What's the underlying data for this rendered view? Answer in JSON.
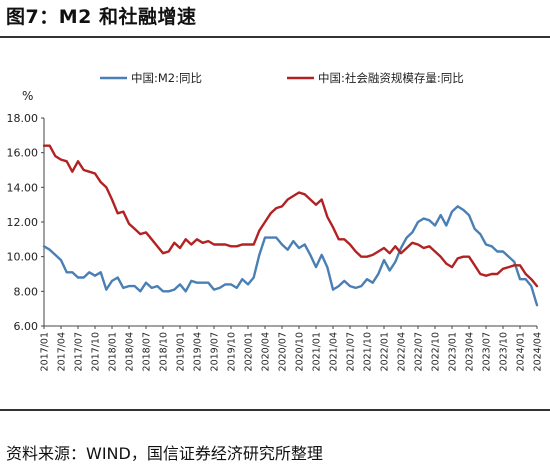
{
  "title": "图7：M2 和社融增速",
  "source": "资料来源：WIND，国信证券经济研究所整理",
  "chart_data": {
    "type": "line",
    "ylabel": "%",
    "ylim": [
      6,
      18
    ],
    "yticks": [
      "6.00",
      "8.00",
      "10.00",
      "12.00",
      "14.00",
      "16.00",
      "18.00"
    ],
    "x": [
      "2017/01",
      "2017/02",
      "2017/03",
      "2017/04",
      "2017/05",
      "2017/06",
      "2017/07",
      "2017/08",
      "2017/09",
      "2017/10",
      "2017/11",
      "2017/12",
      "2018/01",
      "2018/02",
      "2018/03",
      "2018/04",
      "2018/05",
      "2018/06",
      "2018/07",
      "2018/08",
      "2018/09",
      "2018/10",
      "2018/11",
      "2018/12",
      "2019/01",
      "2019/02",
      "2019/03",
      "2019/04",
      "2019/05",
      "2019/06",
      "2019/07",
      "2019/08",
      "2019/09",
      "2019/10",
      "2019/11",
      "2019/12",
      "2020/01",
      "2020/02",
      "2020/03",
      "2020/04",
      "2020/05",
      "2020/06",
      "2020/07",
      "2020/08",
      "2020/09",
      "2020/10",
      "2020/11",
      "2020/12",
      "2021/01",
      "2021/02",
      "2021/03",
      "2021/04",
      "2021/05",
      "2021/06",
      "2021/07",
      "2021/08",
      "2021/09",
      "2021/10",
      "2021/11",
      "2021/12",
      "2022/01",
      "2022/02",
      "2022/03",
      "2022/04",
      "2022/05",
      "2022/06",
      "2022/07",
      "2022/08",
      "2022/09",
      "2022/10",
      "2022/11",
      "2022/12",
      "2023/01",
      "2023/02",
      "2023/03",
      "2023/04",
      "2023/05",
      "2023/06",
      "2023/07",
      "2023/08",
      "2023/09",
      "2023/10",
      "2023/11",
      "2023/12",
      "2024/01",
      "2024/02",
      "2024/03",
      "2024/04"
    ],
    "xtick_labels": [
      "2017/01",
      "2017/04",
      "2017/07",
      "2017/10",
      "2018/01",
      "2018/04",
      "2018/07",
      "2018/10",
      "2019/01",
      "2019/04",
      "2019/07",
      "2019/10",
      "2020/01",
      "2020/04",
      "2020/07",
      "2020/10",
      "2021/01",
      "2021/04",
      "2021/07",
      "2021/10",
      "2022/01",
      "2022/04",
      "2022/07",
      "2022/10",
      "2023/01",
      "2023/04",
      "2023/07",
      "2023/10",
      "2024/01",
      "2024/04"
    ],
    "series": [
      {
        "name": "中国:M2:同比",
        "color": "#4a7fb5",
        "values": [
          10.6,
          10.4,
          10.1,
          9.8,
          9.1,
          9.1,
          8.8,
          8.8,
          9.1,
          8.9,
          9.1,
          8.1,
          8.6,
          8.8,
          8.2,
          8.3,
          8.3,
          8.0,
          8.5,
          8.2,
          8.3,
          8.0,
          8.0,
          8.1,
          8.4,
          8.0,
          8.6,
          8.5,
          8.5,
          8.5,
          8.1,
          8.2,
          8.4,
          8.4,
          8.2,
          8.7,
          8.4,
          8.8,
          10.1,
          11.1,
          11.1,
          11.1,
          10.7,
          10.4,
          10.9,
          10.5,
          10.7,
          10.1,
          9.4,
          10.1,
          9.4,
          8.1,
          8.3,
          8.6,
          8.3,
          8.2,
          8.3,
          8.7,
          8.5,
          9.0,
          9.8,
          9.2,
          9.7,
          10.5,
          11.1,
          11.4,
          12.0,
          12.2,
          12.1,
          11.8,
          12.4,
          11.8,
          12.6,
          12.9,
          12.7,
          12.4,
          11.6,
          11.3,
          10.7,
          10.6,
          10.3,
          10.3,
          10.0,
          9.7,
          8.7,
          8.7,
          8.3,
          7.2
        ]
      },
      {
        "name": "中国:社会融资规模存量:同比",
        "color": "#b22222",
        "values": [
          16.4,
          16.4,
          15.8,
          15.6,
          15.5,
          14.9,
          15.5,
          15.0,
          14.9,
          14.8,
          14.3,
          14.0,
          13.3,
          12.5,
          12.6,
          11.9,
          11.6,
          11.3,
          11.4,
          11.0,
          10.6,
          10.2,
          10.3,
          10.8,
          10.5,
          11.0,
          10.7,
          11.0,
          10.8,
          10.9,
          10.7,
          10.7,
          10.7,
          10.6,
          10.6,
          10.7,
          10.7,
          10.7,
          11.5,
          12.0,
          12.5,
          12.8,
          12.9,
          13.3,
          13.5,
          13.7,
          13.6,
          13.3,
          13.0,
          13.3,
          12.3,
          11.7,
          11.0,
          11.0,
          10.7,
          10.3,
          10.0,
          10.0,
          10.1,
          10.3,
          10.5,
          10.2,
          10.6,
          10.2,
          10.5,
          10.8,
          10.7,
          10.5,
          10.6,
          10.3,
          10.0,
          9.6,
          9.4,
          9.9,
          10.0,
          10.0,
          9.5,
          9.0,
          8.9,
          9.0,
          9.0,
          9.3,
          9.4,
          9.5,
          9.5,
          9.0,
          8.7,
          8.3
        ]
      }
    ],
    "legend_position": "top",
    "grid": false
  }
}
